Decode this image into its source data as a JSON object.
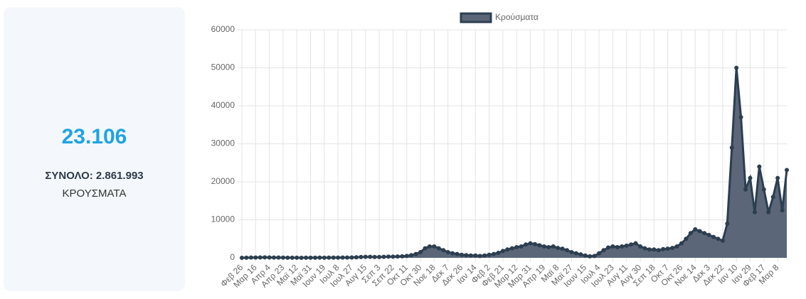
{
  "card": {
    "big_number": "23.106",
    "total_label": "ΣΥΝΟΛΟ: 2.861.993",
    "label": "ΚΡΟΥΣΜΑΤΑ"
  },
  "chart_data": {
    "type": "line",
    "legend": "top",
    "categories": [
      "Φεβ 26",
      null,
      null,
      "Μαρ 16",
      null,
      null,
      "Απρ 4",
      null,
      null,
      "Απρ 23",
      null,
      null,
      "Μαϊ 12",
      null,
      null,
      "Μαϊ 31",
      null,
      null,
      "Ιουν 19",
      null,
      null,
      "Ιουλ 8",
      null,
      null,
      "Ιουλ 27",
      null,
      null,
      "Αυγ 15",
      null,
      null,
      "Σεπ 3",
      null,
      null,
      "Σεπ 22",
      null,
      null,
      "Οκτ 11",
      null,
      null,
      "Οκτ 30",
      null,
      null,
      "Νοε 18",
      null,
      null,
      "Δεκ 7",
      null,
      null,
      "Δεκ 26",
      null,
      null,
      "Ιαν 14",
      null,
      null,
      "Φεβ 2",
      null,
      null,
      "Φεβ 21",
      null,
      null,
      "Μαρ 12",
      null,
      null,
      "Μαρ 31",
      null,
      null,
      "Απρ 19",
      null,
      null,
      "Μαϊ 8",
      null,
      null,
      "Μαϊ 27",
      null,
      null,
      "Ιουν 15",
      null,
      null,
      "Ιουλ 4",
      null,
      null,
      "Ιουλ 23",
      null,
      null,
      "Αυγ 11",
      null,
      null,
      "Αυγ 30",
      null,
      null,
      "Σεπ 18",
      null,
      null,
      "Οκτ 7",
      null,
      null,
      "Οκτ 26",
      null,
      null,
      "Νοε 14",
      null,
      null,
      "Δεκ 3",
      null,
      null,
      "Δεκ 22",
      null,
      null,
      "Ιαν 10",
      null,
      null,
      "Ιαν 29",
      null,
      null,
      "Φεβ 17",
      null,
      null,
      "Μαρ 8",
      null,
      null
    ],
    "series": [
      {
        "name": "Κρούσματα",
        "color": "#2c3e50",
        "fill": "#5b6679",
        "values": [
          0,
          20,
          60,
          80,
          100,
          120,
          100,
          80,
          60,
          40,
          30,
          20,
          15,
          10,
          15,
          20,
          30,
          40,
          30,
          40,
          40,
          50,
          60,
          70,
          100,
          150,
          200,
          250,
          250,
          200,
          200,
          250,
          300,
          300,
          350,
          400,
          500,
          700,
          1000,
          1500,
          2500,
          3000,
          3000,
          2500,
          2000,
          1500,
          1200,
          1000,
          800,
          700,
          600,
          600,
          500,
          600,
          800,
          1000,
          1300,
          1800,
          2200,
          2500,
          2800,
          3000,
          3500,
          3800,
          3600,
          3300,
          3000,
          2800,
          3000,
          2600,
          2400,
          2000,
          1500,
          1200,
          900,
          600,
          400,
          500,
          1200,
          2000,
          2700,
          3000,
          2800,
          3000,
          3200,
          3500,
          3800,
          3000,
          2500,
          2200,
          2200,
          2000,
          2300,
          2400,
          2600,
          3000,
          3800,
          5000,
          6500,
          7500,
          7000,
          6500,
          6000,
          5500,
          5000,
          4500,
          9000,
          29000,
          50000,
          37000,
          18000,
          21000,
          12000,
          24000,
          18000,
          12000,
          16000,
          21000,
          12500,
          23106
        ]
      }
    ],
    "ylim": [
      0,
      60000
    ],
    "yticks": [
      0,
      10000,
      20000,
      30000,
      40000,
      50000,
      60000
    ],
    "grid": true
  }
}
